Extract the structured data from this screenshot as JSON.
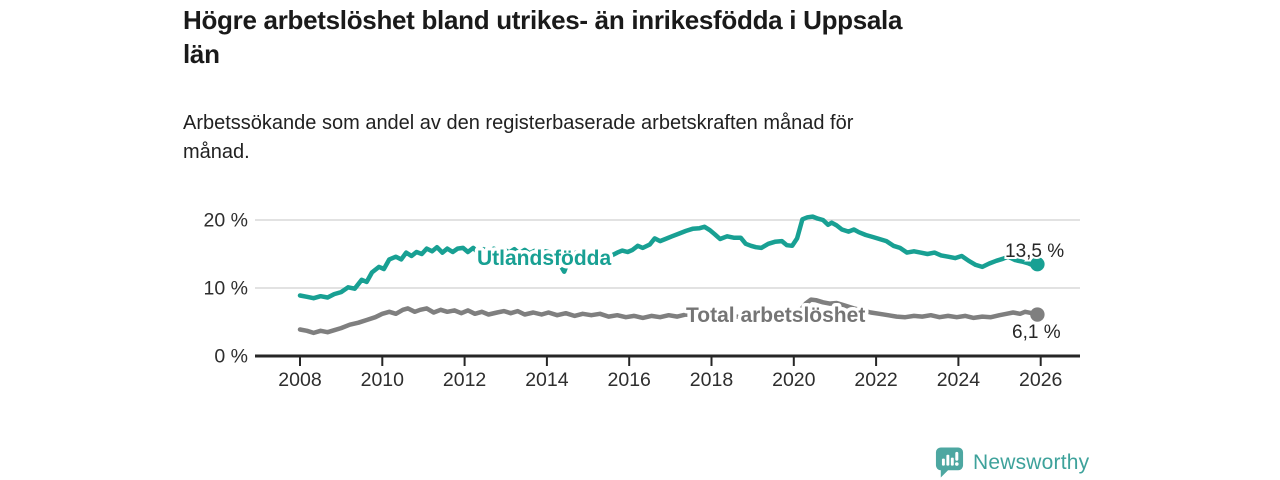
{
  "header": {
    "title": "Högre arbetslöshet bland utrikes- än inrikesfödda i Uppsala län",
    "title_lines": [
      "Högre arbetslöshet bland utrikes- än inrikesfödda i Uppsala",
      "län"
    ],
    "subtitle": "Arbetssökande som andel av den registerbaserade arbetskraften månad för månad.",
    "subtitle_lines": [
      "Arbetssökande som andel av den registerbaserade arbetskraften månad för",
      "månad."
    ]
  },
  "footer": {
    "brand": "Newsworthy",
    "logo_icon": "bar-chart-speech-bubble-icon"
  },
  "colors": {
    "teal": "#18a093",
    "gray": "#7f7f7f",
    "gray_label": "#757575",
    "text_dark": "#262626",
    "axis": "#262626",
    "grid": "#d8d8d8",
    "logo_teal": "#4da7a1"
  },
  "chart_data": {
    "type": "line",
    "title": "Högre arbetslöshet bland utrikes- än inrikesfödda i Uppsala län",
    "subtitle": "Arbetssökande som andel av den registerbaserade arbetskraften månad för månad.",
    "xlabel": "",
    "ylabel": "",
    "xlim": [
      2007.6,
      2027
    ],
    "ylim": [
      0,
      22
    ],
    "grid": "horizontal",
    "legend": "inline-labels",
    "x_ticks": [
      {
        "value": 2008,
        "label": "2008"
      },
      {
        "value": 2010,
        "label": "2010"
      },
      {
        "value": 2012,
        "label": "2012"
      },
      {
        "value": 2014,
        "label": "2014"
      },
      {
        "value": 2016,
        "label": "2016"
      },
      {
        "value": 2018,
        "label": "2018"
      },
      {
        "value": 2020,
        "label": "2020"
      },
      {
        "value": 2022,
        "label": "2022"
      },
      {
        "value": 2024,
        "label": "2024"
      },
      {
        "value": 2026,
        "label": "2026"
      }
    ],
    "y_ticks": [
      {
        "value": 0,
        "label": "0 %"
      },
      {
        "value": 10,
        "label": "10 %"
      },
      {
        "value": 20,
        "label": "20 %"
      }
    ],
    "series": [
      {
        "name": "Utlandsfödda",
        "slug": "utlandsfodda",
        "color": "#18a093",
        "label_text": "Utlandsfödda",
        "end_label": "13,5 %",
        "end_value": 13.5,
        "points": [
          [
            2008.0,
            8.9
          ],
          [
            2008.17,
            8.7
          ],
          [
            2008.33,
            8.5
          ],
          [
            2008.5,
            8.8
          ],
          [
            2008.67,
            8.6
          ],
          [
            2008.83,
            9.1
          ],
          [
            2009.0,
            9.4
          ],
          [
            2009.17,
            10.1
          ],
          [
            2009.33,
            9.9
          ],
          [
            2009.5,
            11.2
          ],
          [
            2009.62,
            10.9
          ],
          [
            2009.75,
            12.3
          ],
          [
            2009.92,
            13.1
          ],
          [
            2010.04,
            12.8
          ],
          [
            2010.17,
            14.2
          ],
          [
            2010.33,
            14.6
          ],
          [
            2010.46,
            14.2
          ],
          [
            2010.58,
            15.2
          ],
          [
            2010.71,
            14.7
          ],
          [
            2010.83,
            15.3
          ],
          [
            2010.96,
            15.0
          ],
          [
            2011.08,
            15.8
          ],
          [
            2011.21,
            15.4
          ],
          [
            2011.33,
            16.0
          ],
          [
            2011.46,
            15.2
          ],
          [
            2011.58,
            15.8
          ],
          [
            2011.71,
            15.3
          ],
          [
            2011.83,
            15.8
          ],
          [
            2011.96,
            15.9
          ],
          [
            2012.08,
            15.3
          ],
          [
            2012.21,
            15.9
          ],
          [
            2012.33,
            15.2
          ],
          [
            2012.46,
            15.7
          ],
          [
            2012.58,
            15.3
          ],
          [
            2012.71,
            15.8
          ],
          [
            2012.83,
            15.3
          ],
          [
            2012.96,
            15.7
          ],
          [
            2013.08,
            15.2
          ],
          [
            2013.21,
            15.7
          ],
          [
            2013.33,
            15.1
          ],
          [
            2013.46,
            15.6
          ],
          [
            2013.58,
            15.1
          ],
          [
            2013.71,
            15.5
          ],
          [
            2013.83,
            15.0
          ],
          [
            2013.96,
            15.4
          ],
          [
            2014.08,
            15.2
          ],
          [
            2014.21,
            14.6
          ],
          [
            2014.42,
            12.4
          ],
          [
            2014.58,
            14.9
          ],
          [
            2014.71,
            15.2
          ],
          [
            2014.83,
            14.8
          ],
          [
            2014.96,
            15.1
          ],
          [
            2015.08,
            14.7
          ],
          [
            2015.21,
            15.0
          ],
          [
            2015.33,
            14.7
          ],
          [
            2015.46,
            15.0
          ],
          [
            2015.58,
            14.8
          ],
          [
            2015.71,
            15.2
          ],
          [
            2015.83,
            15.5
          ],
          [
            2015.96,
            15.3
          ],
          [
            2016.08,
            15.6
          ],
          [
            2016.21,
            16.2
          ],
          [
            2016.33,
            15.9
          ],
          [
            2016.5,
            16.4
          ],
          [
            2016.62,
            17.3
          ],
          [
            2016.75,
            16.9
          ],
          [
            2016.88,
            17.2
          ],
          [
            2017.04,
            17.6
          ],
          [
            2017.21,
            18.0
          ],
          [
            2017.38,
            18.4
          ],
          [
            2017.54,
            18.7
          ],
          [
            2017.71,
            18.8
          ],
          [
            2017.83,
            19.0
          ],
          [
            2017.96,
            18.5
          ],
          [
            2018.08,
            17.9
          ],
          [
            2018.21,
            17.2
          ],
          [
            2018.38,
            17.6
          ],
          [
            2018.54,
            17.4
          ],
          [
            2018.71,
            17.4
          ],
          [
            2018.83,
            16.5
          ],
          [
            2018.96,
            16.2
          ],
          [
            2019.08,
            16.0
          ],
          [
            2019.21,
            15.9
          ],
          [
            2019.38,
            16.5
          ],
          [
            2019.54,
            16.8
          ],
          [
            2019.71,
            16.9
          ],
          [
            2019.83,
            16.3
          ],
          [
            2019.96,
            16.2
          ],
          [
            2020.08,
            17.3
          ],
          [
            2020.21,
            20.1
          ],
          [
            2020.33,
            20.4
          ],
          [
            2020.46,
            20.5
          ],
          [
            2020.58,
            20.2
          ],
          [
            2020.71,
            20.0
          ],
          [
            2020.83,
            19.3
          ],
          [
            2020.92,
            19.6
          ],
          [
            2021.04,
            19.2
          ],
          [
            2021.17,
            18.6
          ],
          [
            2021.33,
            18.3
          ],
          [
            2021.46,
            18.6
          ],
          [
            2021.58,
            18.2
          ],
          [
            2021.75,
            17.8
          ],
          [
            2021.92,
            17.5
          ],
          [
            2022.08,
            17.2
          ],
          [
            2022.25,
            16.9
          ],
          [
            2022.42,
            16.2
          ],
          [
            2022.58,
            15.9
          ],
          [
            2022.75,
            15.2
          ],
          [
            2022.92,
            15.4
          ],
          [
            2023.08,
            15.2
          ],
          [
            2023.25,
            15.0
          ],
          [
            2023.42,
            15.2
          ],
          [
            2023.58,
            14.8
          ],
          [
            2023.75,
            14.6
          ],
          [
            2023.92,
            14.4
          ],
          [
            2024.08,
            14.7
          ],
          [
            2024.25,
            14.0
          ],
          [
            2024.42,
            13.4
          ],
          [
            2024.58,
            13.1
          ],
          [
            2024.75,
            13.6
          ],
          [
            2024.92,
            14.0
          ],
          [
            2025.08,
            14.3
          ],
          [
            2025.21,
            14.6
          ],
          [
            2025.38,
            14.1
          ],
          [
            2025.54,
            13.9
          ],
          [
            2025.71,
            13.6
          ],
          [
            2025.83,
            13.3
          ],
          [
            2025.92,
            13.5
          ]
        ]
      },
      {
        "name": "Total arbetslöshet",
        "slug": "total-arbetsloshet",
        "color": "#7f7f7f",
        "label_text": "Total arbetslöshet",
        "end_label": "6,1 %",
        "end_value": 6.1,
        "points": [
          [
            2008.0,
            3.9
          ],
          [
            2008.17,
            3.7
          ],
          [
            2008.33,
            3.4
          ],
          [
            2008.5,
            3.7
          ],
          [
            2008.67,
            3.5
          ],
          [
            2008.83,
            3.8
          ],
          [
            2009.0,
            4.1
          ],
          [
            2009.21,
            4.6
          ],
          [
            2009.42,
            4.9
          ],
          [
            2009.62,
            5.3
          ],
          [
            2009.83,
            5.7
          ],
          [
            2010.0,
            6.2
          ],
          [
            2010.17,
            6.5
          ],
          [
            2010.33,
            6.2
          ],
          [
            2010.5,
            6.8
          ],
          [
            2010.62,
            7.0
          ],
          [
            2010.79,
            6.5
          ],
          [
            2010.92,
            6.8
          ],
          [
            2011.08,
            7.0
          ],
          [
            2011.25,
            6.4
          ],
          [
            2011.42,
            6.8
          ],
          [
            2011.58,
            6.5
          ],
          [
            2011.75,
            6.7
          ],
          [
            2011.92,
            6.3
          ],
          [
            2012.08,
            6.7
          ],
          [
            2012.25,
            6.2
          ],
          [
            2012.42,
            6.5
          ],
          [
            2012.58,
            6.1
          ],
          [
            2012.79,
            6.4
          ],
          [
            2012.96,
            6.6
          ],
          [
            2013.12,
            6.3
          ],
          [
            2013.29,
            6.6
          ],
          [
            2013.46,
            6.1
          ],
          [
            2013.67,
            6.4
          ],
          [
            2013.87,
            6.1
          ],
          [
            2014.04,
            6.4
          ],
          [
            2014.25,
            6.0
          ],
          [
            2014.46,
            6.3
          ],
          [
            2014.67,
            5.9
          ],
          [
            2014.87,
            6.2
          ],
          [
            2015.08,
            6.0
          ],
          [
            2015.29,
            6.2
          ],
          [
            2015.5,
            5.8
          ],
          [
            2015.71,
            6.0
          ],
          [
            2015.92,
            5.7
          ],
          [
            2016.12,
            5.9
          ],
          [
            2016.33,
            5.6
          ],
          [
            2016.54,
            5.9
          ],
          [
            2016.75,
            5.7
          ],
          [
            2016.96,
            6.0
          ],
          [
            2017.17,
            5.8
          ],
          [
            2017.38,
            6.1
          ],
          [
            2017.58,
            5.9
          ],
          [
            2017.79,
            6.0
          ],
          [
            2018.0,
            5.7
          ],
          [
            2018.21,
            5.9
          ],
          [
            2018.42,
            5.6
          ],
          [
            2018.62,
            5.8
          ],
          [
            2018.83,
            5.5
          ],
          [
            2019.04,
            5.7
          ],
          [
            2019.25,
            5.5
          ],
          [
            2019.46,
            5.8
          ],
          [
            2019.67,
            5.6
          ],
          [
            2019.87,
            5.9
          ],
          [
            2020.04,
            6.1
          ],
          [
            2020.17,
            6.8
          ],
          [
            2020.29,
            7.7
          ],
          [
            2020.42,
            8.3
          ],
          [
            2020.54,
            8.2
          ],
          [
            2020.71,
            7.9
          ],
          [
            2020.87,
            7.7
          ],
          [
            2021.04,
            7.8
          ],
          [
            2021.25,
            7.4
          ],
          [
            2021.46,
            7.0
          ],
          [
            2021.67,
            6.7
          ],
          [
            2021.87,
            6.4
          ],
          [
            2022.08,
            6.2
          ],
          [
            2022.29,
            6.0
          ],
          [
            2022.5,
            5.8
          ],
          [
            2022.71,
            5.7
          ],
          [
            2022.92,
            5.9
          ],
          [
            2023.12,
            5.8
          ],
          [
            2023.33,
            6.0
          ],
          [
            2023.54,
            5.7
          ],
          [
            2023.75,
            5.9
          ],
          [
            2023.96,
            5.7
          ],
          [
            2024.17,
            5.9
          ],
          [
            2024.37,
            5.6
          ],
          [
            2024.58,
            5.8
          ],
          [
            2024.79,
            5.7
          ],
          [
            2025.0,
            6.0
          ],
          [
            2025.17,
            6.2
          ],
          [
            2025.33,
            6.4
          ],
          [
            2025.5,
            6.2
          ],
          [
            2025.62,
            6.5
          ],
          [
            2025.79,
            6.3
          ],
          [
            2025.92,
            6.1
          ]
        ]
      }
    ]
  }
}
